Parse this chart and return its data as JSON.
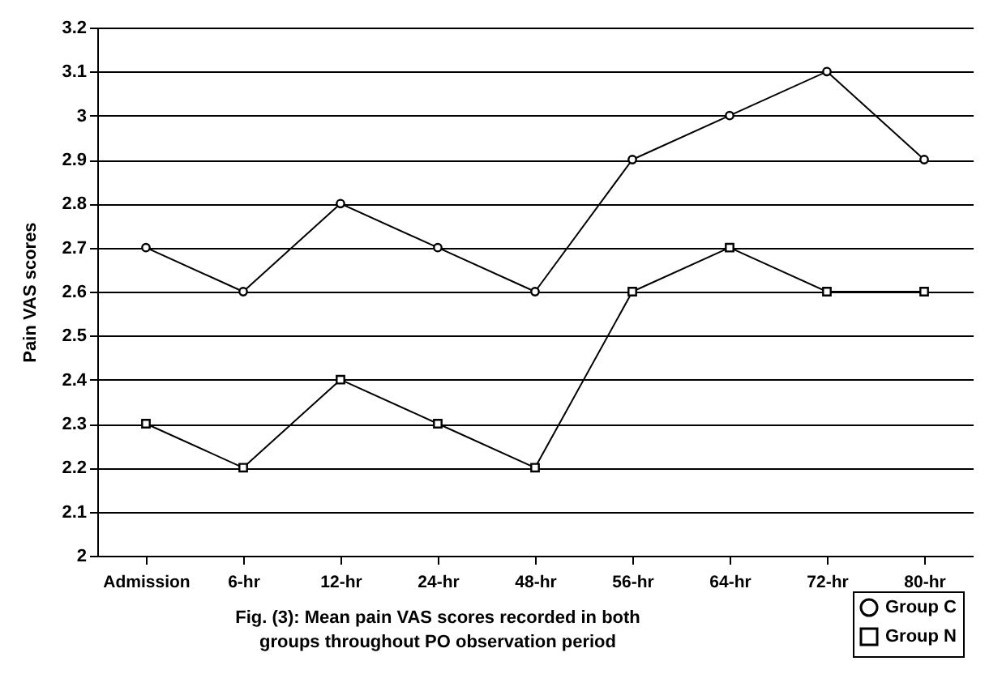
{
  "chart_data": {
    "type": "line",
    "title": "Fig. (3): Mean pain VAS scores recorded in both groups throughout PO observation period",
    "ylabel": "Pain VAS scores",
    "categories": [
      "Admission",
      "6-hr",
      "12-hr",
      "24-hr",
      "48-hr",
      "56-hr",
      "64-hr",
      "72-hr",
      "80-hr"
    ],
    "series": [
      {
        "name": "Group C",
        "color": "#000000",
        "marker": "circle",
        "values": [
          2.7,
          2.6,
          2.8,
          2.7,
          2.6,
          2.9,
          3.0,
          3.1,
          2.9
        ]
      },
      {
        "name": "Group N",
        "color": "#000000",
        "marker": "square",
        "values": [
          2.3,
          2.2,
          2.4,
          2.3,
          2.2,
          2.6,
          2.7,
          2.6,
          2.6
        ]
      }
    ],
    "ylim": [
      2,
      3.2
    ],
    "yticks": [
      2,
      2.1,
      2.2,
      2.3,
      2.4,
      2.5,
      2.6,
      2.7,
      2.8,
      2.9,
      3,
      3.1,
      3.2
    ],
    "grid": "y",
    "legend": "bottom right",
    "line_style": "solid"
  }
}
